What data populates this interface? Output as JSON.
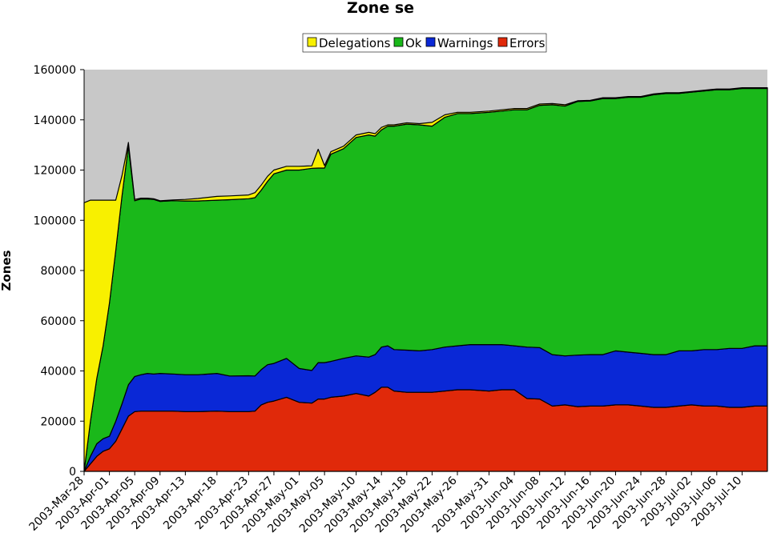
{
  "chart_data": {
    "type": "area",
    "stacked": true,
    "title": "Zone se",
    "xlabel": "",
    "ylabel": "Zones",
    "ylim": [
      0,
      160000
    ],
    "yticks": [
      0,
      20000,
      40000,
      60000,
      80000,
      100000,
      120000,
      140000,
      160000
    ],
    "grid": false,
    "legend_position": "top-center",
    "plot_background": "#c8c8c8",
    "x_start": "2003-03-28",
    "x_end": "2003-07-14",
    "x_tick_labels": [
      "2003-Mar-28",
      "2003-Apr-01",
      "2003-Apr-05",
      "2003-Apr-09",
      "2003-Apr-13",
      "2003-Apr-18",
      "2003-Apr-23",
      "2003-Apr-27",
      "2003-May-01",
      "2003-May-05",
      "2003-May-10",
      "2003-May-14",
      "2003-May-18",
      "2003-May-22",
      "2003-May-26",
      "2003-May-31",
      "2003-Jun-04",
      "2003-Jun-08",
      "2003-Jun-12",
      "2003-Jun-16",
      "2003-Jun-20",
      "2003-Jun-24",
      "2003-Jun-28",
      "2003-Jul-02",
      "2003-Jul-06",
      "2003-Jul-10"
    ],
    "x_tick_dates": [
      "2003-03-28",
      "2003-04-01",
      "2003-04-05",
      "2003-04-09",
      "2003-04-13",
      "2003-04-18",
      "2003-04-23",
      "2003-04-27",
      "2003-05-01",
      "2003-05-05",
      "2003-05-10",
      "2003-05-14",
      "2003-05-18",
      "2003-05-22",
      "2003-05-26",
      "2003-05-31",
      "2003-06-04",
      "2003-06-08",
      "2003-06-12",
      "2003-06-16",
      "2003-06-20",
      "2003-06-24",
      "2003-06-28",
      "2003-07-02",
      "2003-07-06",
      "2003-07-10"
    ],
    "x": [
      "2003-03-28",
      "2003-03-29",
      "2003-03-30",
      "2003-03-31",
      "2003-04-01",
      "2003-04-02",
      "2003-04-03",
      "2003-04-04",
      "2003-04-05",
      "2003-04-06",
      "2003-04-07",
      "2003-04-08",
      "2003-04-09",
      "2003-04-11",
      "2003-04-13",
      "2003-04-15",
      "2003-04-18",
      "2003-04-20",
      "2003-04-23",
      "2003-04-24",
      "2003-04-25",
      "2003-04-26",
      "2003-04-27",
      "2003-04-29",
      "2003-05-01",
      "2003-05-03",
      "2003-05-04",
      "2003-05-05",
      "2003-05-06",
      "2003-05-08",
      "2003-05-10",
      "2003-05-12",
      "2003-05-13",
      "2003-05-14",
      "2003-05-15",
      "2003-05-16",
      "2003-05-18",
      "2003-05-20",
      "2003-05-22",
      "2003-05-24",
      "2003-05-26",
      "2003-05-28",
      "2003-05-31",
      "2003-06-02",
      "2003-06-04",
      "2003-06-06",
      "2003-06-08",
      "2003-06-10",
      "2003-06-12",
      "2003-06-14",
      "2003-06-16",
      "2003-06-18",
      "2003-06-20",
      "2003-06-22",
      "2003-06-24",
      "2003-06-26",
      "2003-06-28",
      "2003-06-30",
      "2003-07-02",
      "2003-07-04",
      "2003-07-06",
      "2003-07-08",
      "2003-07-10",
      "2003-07-12",
      "2003-07-14"
    ],
    "series": [
      {
        "name": "Errors",
        "color": "#e0290a",
        "values": [
          0,
          3000,
          6000,
          8000,
          9000,
          12000,
          17000,
          22000,
          23800,
          24000,
          24000,
          24000,
          24000,
          24000,
          23800,
          23800,
          24000,
          23800,
          23800,
          24000,
          26500,
          27500,
          28000,
          29500,
          27500,
          27200,
          28800,
          28800,
          29500,
          30000,
          31000,
          30000,
          31500,
          33500,
          33500,
          32000,
          31500,
          31500,
          31500,
          32000,
          32500,
          32500,
          32000,
          32500,
          32500,
          29000,
          28800,
          26000,
          26500,
          25800,
          26000,
          26000,
          26500,
          26500,
          26000,
          25500,
          25500,
          26000,
          26500,
          26000,
          26000,
          25500,
          25500,
          26000,
          26000
        ]
      },
      {
        "name": "Warnings",
        "color": "#0a28d6",
        "values": [
          0,
          3000,
          5000,
          5000,
          5000,
          8000,
          10000,
          12500,
          14000,
          14500,
          15000,
          14800,
          15000,
          14800,
          14700,
          14700,
          15000,
          14200,
          14300,
          14000,
          14000,
          15000,
          15000,
          15500,
          13500,
          13000,
          14500,
          14500,
          14300,
          15000,
          15000,
          15500,
          15000,
          16000,
          16500,
          16500,
          16800,
          16500,
          17000,
          17500,
          17500,
          18000,
          18500,
          18000,
          17500,
          20500,
          20500,
          20500,
          19500,
          20500,
          20500,
          20500,
          21500,
          21000,
          21000,
          21000,
          21000,
          22000,
          21500,
          22500,
          22500,
          23500,
          23500,
          24000,
          24000
        ]
      },
      {
        "name": "Ok",
        "color": "#1ab81a",
        "values": [
          0,
          14000,
          26000,
          37000,
          53000,
          68000,
          83000,
          95000,
          70000,
          70000,
          69500,
          69500,
          68500,
          69000,
          69200,
          69200,
          69000,
          70200,
          70500,
          71000,
          71500,
          73000,
          75500,
          75000,
          79000,
          80500,
          77500,
          77500,
          82500,
          83500,
          87000,
          88500,
          87000,
          86500,
          87500,
          89000,
          90000,
          90000,
          89000,
          91500,
          92500,
          92000,
          92500,
          93000,
          94000,
          94500,
          96500,
          99500,
          99500,
          101000,
          101000,
          102000,
          100500,
          101500,
          102000,
          103500,
          104000,
          102500,
          103000,
          103000,
          103500,
          103000,
          103500,
          102500,
          102500
        ]
      },
      {
        "name": "Delegations",
        "color": "#f8f000",
        "values": [
          107000,
          88000,
          71000,
          58000,
          41000,
          20000,
          8000,
          1500,
          500,
          300,
          300,
          300,
          300,
          300,
          600,
          1000,
          1500,
          1500,
          1500,
          2000,
          2000,
          2000,
          1500,
          1500,
          1500,
          1000,
          7500,
          1000,
          1000,
          1000,
          1000,
          1000,
          1000,
          1000,
          500,
          500,
          500,
          500,
          1500,
          1000,
          500,
          500,
          500,
          500,
          500,
          500,
          500,
          500,
          500,
          300,
          300,
          300,
          300,
          300,
          300,
          300,
          300,
          300,
          300,
          300,
          300,
          300,
          300,
          300,
          300
        ]
      }
    ]
  }
}
